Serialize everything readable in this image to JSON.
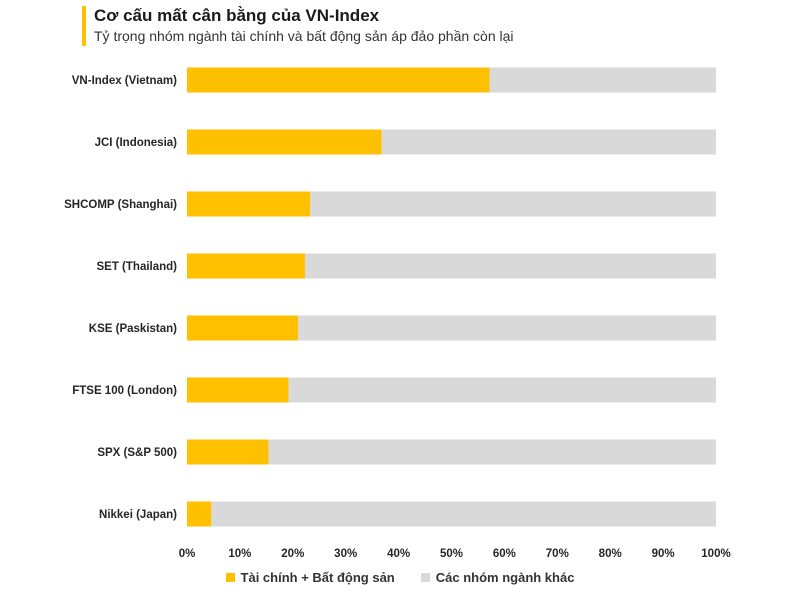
{
  "header": {
    "title": "Cơ cấu mất cân bằng của VN-Index",
    "subtitle": "Tỷ trọng nhóm ngành tài chính và bất động sản áp đảo phần còn lại"
  },
  "chart_data": {
    "type": "bar",
    "orientation": "horizontal",
    "stacked": true,
    "percent_stacked": true,
    "categories": [
      "VN-Index (Vietnam)",
      "JCI (Indonesia)",
      "SHCOMP (Shanghai)",
      "SET (Thailand)",
      "KSE (Paskistan)",
      "FTSE 100 (London)",
      "SPX (S&P 500)",
      "Nikkei (Japan)"
    ],
    "series": [
      {
        "name": "Tài chính + Bất động sản",
        "color": "#FFC000",
        "values": [
          57.2,
          36.8,
          23.3,
          22.3,
          21.0,
          19.2,
          15.4,
          4.6
        ]
      },
      {
        "name": "Các nhóm ngành khác",
        "color": "#D9D9D9",
        "values": [
          42.8,
          63.2,
          76.7,
          77.7,
          79.0,
          80.8,
          84.6,
          95.4
        ]
      }
    ],
    "xlim": [
      0,
      100
    ],
    "xticks": [
      "0%",
      "10%",
      "20%",
      "30%",
      "40%",
      "50%",
      "60%",
      "70%",
      "80%",
      "90%",
      "100%"
    ],
    "grid": false,
    "legend_position": "bottom"
  }
}
